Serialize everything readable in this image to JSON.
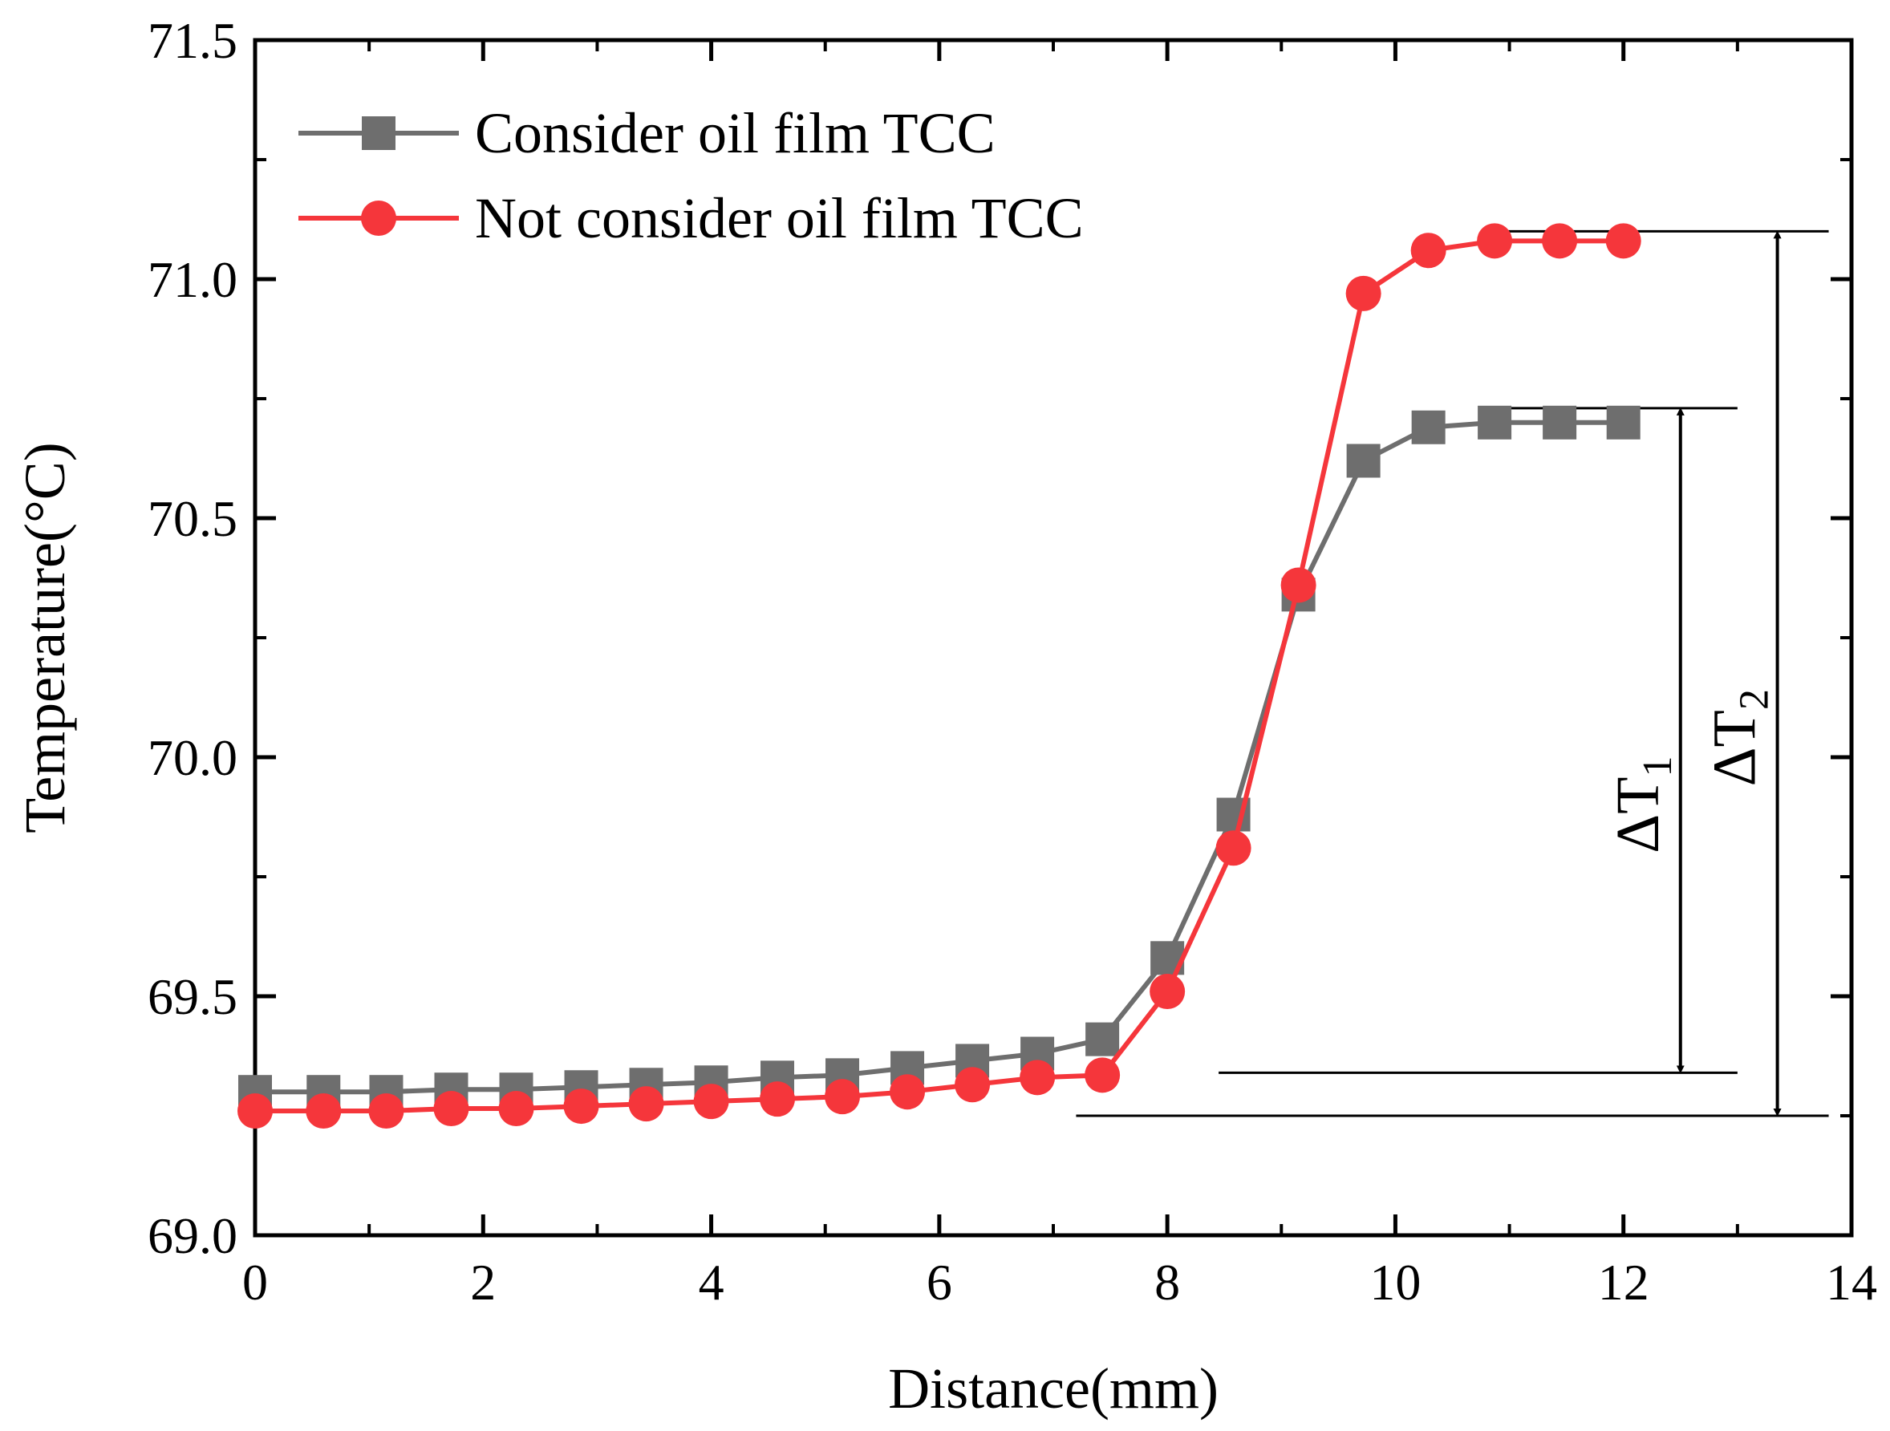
{
  "chart_data": {
    "type": "line",
    "title": "",
    "xlabel": "Distance(mm)",
    "ylabel": "Temperature(°C)",
    "xlim": [
      0,
      14
    ],
    "ylim": [
      69.0,
      71.5
    ],
    "xticks": [
      0,
      2,
      4,
      6,
      8,
      10,
      12,
      14
    ],
    "xtick_labels": [
      "0",
      "2",
      "4",
      "6",
      "8",
      "10",
      "12",
      "14"
    ],
    "yticks": [
      69.0,
      69.5,
      70.0,
      70.5,
      71.0,
      71.5
    ],
    "ytick_labels": [
      "69.0",
      "69.5",
      "70.0",
      "70.5",
      "71.0",
      "71.5"
    ],
    "grid": false,
    "legend_position": "top-left",
    "x": [
      0,
      0.6,
      1.15,
      1.72,
      2.29,
      2.86,
      3.43,
      4.0,
      4.58,
      5.15,
      5.72,
      6.29,
      6.86,
      7.43,
      8.0,
      8.58,
      9.15,
      9.72,
      10.29,
      10.87,
      11.44,
      12.0
    ],
    "series": [
      {
        "name": "Consider oil film TCC",
        "color": "#6e6e6e",
        "marker": "square",
        "values": [
          69.3,
          69.3,
          69.3,
          69.305,
          69.305,
          69.31,
          69.315,
          69.32,
          69.33,
          69.335,
          69.35,
          69.365,
          69.38,
          69.41,
          69.58,
          69.88,
          70.34,
          70.62,
          70.69,
          70.7,
          70.7,
          70.7
        ]
      },
      {
        "name": "Not consider oil film TCC",
        "color": "#f5363b",
        "marker": "circle",
        "values": [
          69.26,
          69.26,
          69.26,
          69.265,
          69.265,
          69.27,
          69.275,
          69.28,
          69.285,
          69.29,
          69.3,
          69.315,
          69.33,
          69.335,
          69.51,
          69.81,
          70.36,
          70.97,
          71.06,
          71.08,
          71.08,
          71.08
        ]
      }
    ],
    "annotations": [
      {
        "label": "ΔT",
        "subscript": "1",
        "from_y": 69.34,
        "to_y": 70.73,
        "line_x_from": 8.5,
        "line_x_to": 13.0,
        "arrow_x": 12.5,
        "top_line_x_from": 10.9,
        "bottom_line_x_from": 8.45
      },
      {
        "label": "ΔT",
        "subscript": "2",
        "from_y": 69.25,
        "to_y": 71.1,
        "line_x_from": 7.2,
        "line_x_to": 13.8,
        "arrow_x": 13.35,
        "top_line_x_from": 10.9,
        "bottom_line_x_from": 7.2
      }
    ]
  }
}
